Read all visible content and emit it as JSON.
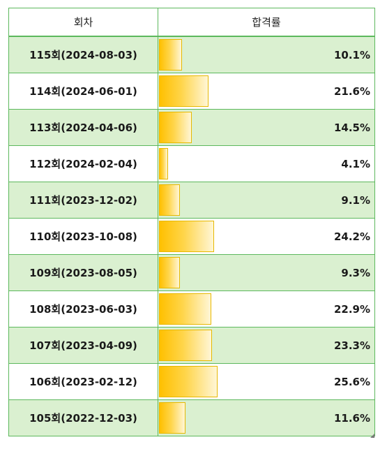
{
  "table": {
    "headers": {
      "round": "회차",
      "rate": "합격률"
    },
    "rows": [
      {
        "round": "115회(2024-08-03)",
        "rate_label": "10.1%",
        "rate": 10.1
      },
      {
        "round": "114회(2024-06-01)",
        "rate_label": "21.6%",
        "rate": 21.6
      },
      {
        "round": "113회(2024-04-06)",
        "rate_label": "14.5%",
        "rate": 14.5
      },
      {
        "round": "112회(2024-02-04)",
        "rate_label": "4.1%",
        "rate": 4.1
      },
      {
        "round": "111회(2023-12-02)",
        "rate_label": "9.1%",
        "rate": 9.1
      },
      {
        "round": "110회(2023-10-08)",
        "rate_label": "24.2%",
        "rate": 24.2
      },
      {
        "round": "109회(2023-08-05)",
        "rate_label": "9.3%",
        "rate": 9.3
      },
      {
        "round": "108회(2023-06-03)",
        "rate_label": "22.9%",
        "rate": 22.9
      },
      {
        "round": "107회(2023-04-09)",
        "rate_label": "23.3%",
        "rate": 23.3
      },
      {
        "round": "106회(2023-02-12)",
        "rate_label": "25.6%",
        "rate": 25.6
      },
      {
        "round": "105회(2022-12-03)",
        "rate_label": "11.6%",
        "rate": 11.6
      }
    ]
  },
  "colors": {
    "border": "#5cb85c",
    "alt_row": "#daf0d0",
    "bar_start": "#ffc000",
    "bar_end": "#fff6d6"
  }
}
